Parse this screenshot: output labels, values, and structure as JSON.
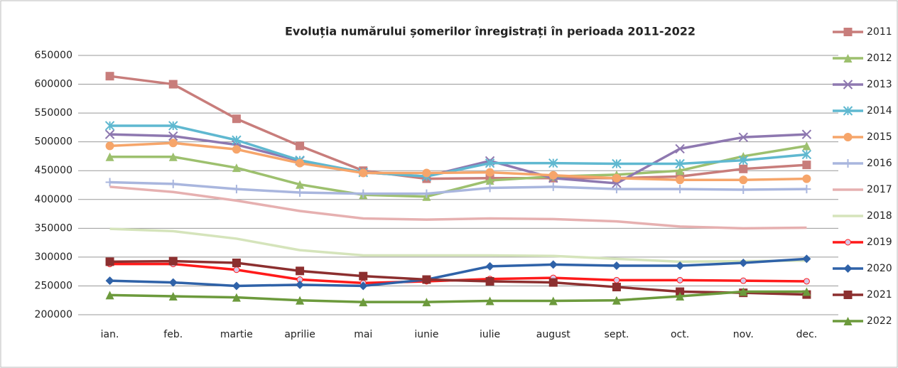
{
  "chart_data": {
    "type": "line",
    "title": "Evoluția numărului  șomerilor înregistrați în perioada 2011-2022",
    "categories": [
      "ian.",
      "feb.",
      "martie",
      "aprilie",
      "mai",
      "iunie",
      "iulie",
      "august",
      "sept.",
      "oct.",
      "nov.",
      "dec."
    ],
    "ylim": [
      200000,
      650000
    ],
    "yticks": [
      200000,
      250000,
      300000,
      350000,
      400000,
      450000,
      500000,
      550000,
      600000,
      650000
    ],
    "grid": true,
    "legend": "right",
    "series": [
      {
        "name": "2011",
        "color": "#c87d7b",
        "marker": "square",
        "values": [
          614000,
          600000,
          540000,
          493000,
          450000,
          436000,
          437000,
          437000,
          437000,
          440000,
          453000,
          460000
        ]
      },
      {
        "name": "2012",
        "color": "#9dc06e",
        "marker": "triangle",
        "values": [
          474000,
          474000,
          455000,
          426000,
          408000,
          405000,
          433000,
          440000,
          443000,
          450000,
          475000,
          493000
        ]
      },
      {
        "name": "2013",
        "color": "#8e78b0",
        "marker": "x",
        "values": [
          513000,
          510000,
          495000,
          467000,
          447000,
          440000,
          467000,
          437000,
          428000,
          488000,
          508000,
          513000
        ]
      },
      {
        "name": "2014",
        "color": "#5fb8d0",
        "marker": "star",
        "values": [
          528000,
          528000,
          503000,
          468000,
          447000,
          440000,
          463000,
          463000,
          462000,
          462000,
          468000,
          478000
        ]
      },
      {
        "name": "2015",
        "color": "#f6a56a",
        "marker": "circle",
        "values": [
          493000,
          498000,
          487000,
          463000,
          446000,
          446000,
          447000,
          442000,
          437000,
          434000,
          434000,
          436000
        ]
      },
      {
        "name": "2016",
        "color": "#a9b6de",
        "marker": "plus",
        "values": [
          430000,
          427000,
          418000,
          412000,
          410000,
          410000,
          420000,
          422000,
          418000,
          418000,
          417000,
          418000
        ]
      },
      {
        "name": "2017",
        "color": "#e6b0b0",
        "marker": "none",
        "values": [
          422000,
          413000,
          398000,
          380000,
          367000,
          365000,
          367000,
          366000,
          362000,
          353000,
          350000,
          351000
        ]
      },
      {
        "name": "2018",
        "color": "#d5e4bb",
        "marker": "none",
        "values": [
          349000,
          345000,
          332000,
          312000,
          303000,
          303000,
          303000,
          302000,
          297000,
          292000,
          293000,
          294000
        ]
      },
      {
        "name": "2019",
        "color": "#ff1a1a",
        "marker": "smallcircle",
        "values": [
          288000,
          288000,
          278000,
          261000,
          255000,
          258000,
          262000,
          264000,
          260000,
          260000,
          259000,
          258000
        ]
      },
      {
        "name": "2020",
        "color": "#2f62a8",
        "marker": "diamond",
        "values": [
          259000,
          256000,
          250000,
          252000,
          250000,
          261000,
          284000,
          287000,
          285000,
          285000,
          290000,
          297000
        ]
      },
      {
        "name": "2021",
        "color": "#8c2f2f",
        "marker": "square",
        "values": [
          292000,
          293000,
          290000,
          276000,
          267000,
          261000,
          258000,
          256000,
          248000,
          240000,
          238000,
          235000
        ]
      },
      {
        "name": "2022",
        "color": "#6c9a3c",
        "marker": "triangle",
        "values": [
          234000,
          232000,
          230000,
          225000,
          222000,
          222000,
          224000,
          224000,
          225000,
          232000,
          240000,
          240000
        ]
      }
    ]
  }
}
